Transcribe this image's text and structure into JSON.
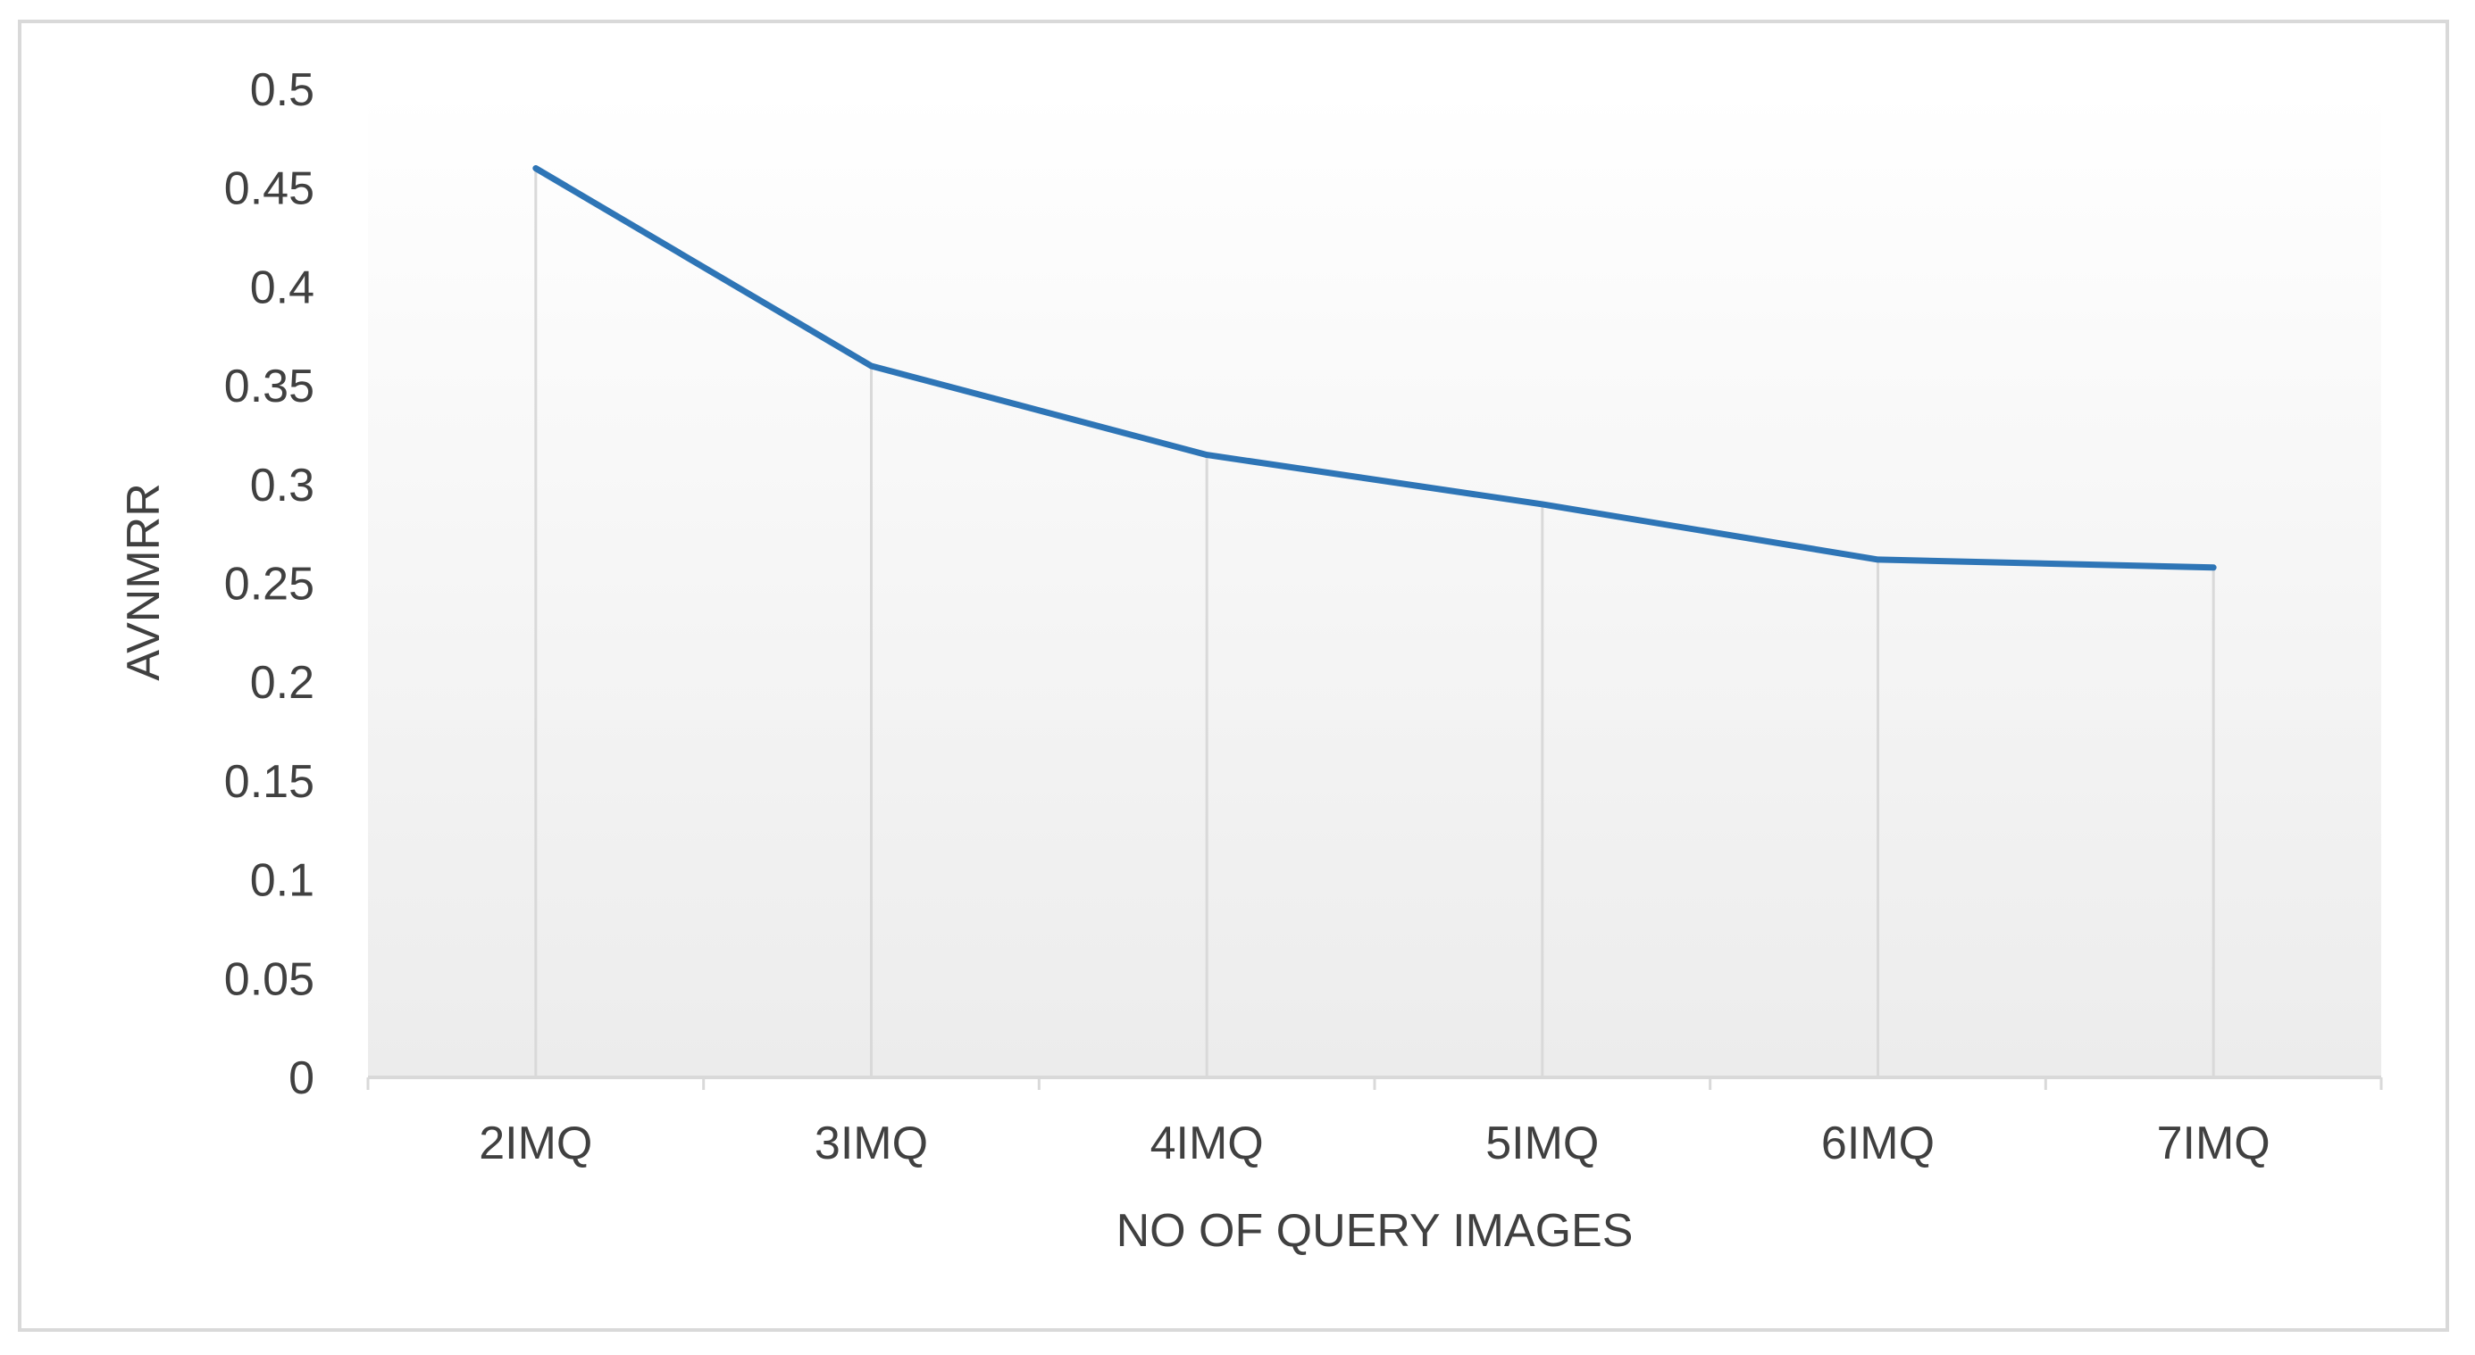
{
  "chart_data": {
    "type": "line",
    "title": "",
    "xlabel": "NO OF QUERY IMAGES",
    "ylabel": "AVNMRR",
    "categories": [
      "2IMQ",
      "3IMQ",
      "4IMQ",
      "5IMQ",
      "6IMQ",
      "7IMQ"
    ],
    "series": [
      {
        "values": [
          0.46,
          0.36,
          0.315,
          0.29,
          0.262,
          0.258
        ],
        "color": "#2e75b6"
      }
    ],
    "ylim": [
      0,
      0.5
    ],
    "yticks": [
      "0",
      "0.05",
      "0.1",
      "0.15",
      "0.2",
      "0.25",
      "0.3",
      "0.35",
      "0.4",
      "0.45",
      "0.5"
    ],
    "grid": "vertical drop lines",
    "legend": "none"
  }
}
